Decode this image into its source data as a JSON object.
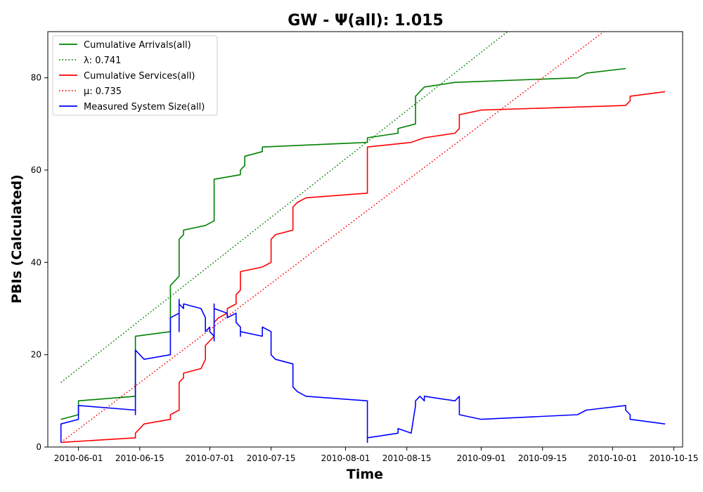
{
  "chart_data": {
    "type": "line",
    "title": "GW -  Ψ(all): 1.015",
    "xlabel": "Time",
    "ylabel": "PBIs (Calculated)",
    "xlim": [
      "2010-05-25",
      "2010-10-17"
    ],
    "ylim": [
      0,
      90
    ],
    "yticks": [
      0,
      20,
      40,
      60,
      80
    ],
    "xticks": [
      "2010-06-01",
      "2010-06-15",
      "2010-07-01",
      "2010-07-15",
      "2010-08-01",
      "2010-08-15",
      "2010-09-01",
      "2010-09-15",
      "2010-10-01",
      "2010-10-15"
    ],
    "grid": false,
    "legend_position": "top-left",
    "series": [
      {
        "name": "Cumulative Arrivals(all)",
        "style": "solid",
        "color": "#008000",
        "points": [
          [
            "2010-05-28",
            6
          ],
          [
            "2010-06-01",
            7
          ],
          [
            "2010-06-01",
            8
          ],
          [
            "2010-06-01",
            10
          ],
          [
            "2010-06-14",
            11
          ],
          [
            "2010-06-14",
            24
          ],
          [
            "2010-06-22",
            25
          ],
          [
            "2010-06-22",
            35
          ],
          [
            "2010-06-24",
            37
          ],
          [
            "2010-06-24",
            40
          ],
          [
            "2010-06-24",
            45
          ],
          [
            "2010-06-25",
            46
          ],
          [
            "2010-06-25",
            47
          ],
          [
            "2010-06-30",
            48
          ],
          [
            "2010-07-02",
            49
          ],
          [
            "2010-07-02",
            57
          ],
          [
            "2010-07-02",
            58
          ],
          [
            "2010-07-08",
            59
          ],
          [
            "2010-07-08",
            60
          ],
          [
            "2010-07-09",
            61
          ],
          [
            "2010-07-09",
            63
          ],
          [
            "2010-07-13",
            64
          ],
          [
            "2010-07-13",
            65
          ],
          [
            "2010-08-06",
            66
          ],
          [
            "2010-08-06",
            67
          ],
          [
            "2010-08-13",
            68
          ],
          [
            "2010-08-13",
            69
          ],
          [
            "2010-08-17",
            70
          ],
          [
            "2010-08-17",
            76
          ],
          [
            "2010-08-18",
            77
          ],
          [
            "2010-08-19",
            78
          ],
          [
            "2010-08-26",
            79
          ],
          [
            "2010-09-23",
            80
          ],
          [
            "2010-09-25",
            81
          ],
          [
            "2010-10-04",
            82
          ]
        ]
      },
      {
        "name": "λ: 0.741",
        "style": "dotted",
        "color": "#008000",
        "points": [
          [
            "2010-05-28",
            14
          ],
          [
            "2010-09-07",
            90
          ]
        ]
      },
      {
        "name": "Cumulative Services(all)",
        "style": "solid",
        "color": "#ff0000",
        "points": [
          [
            "2010-05-28",
            1
          ],
          [
            "2010-06-14",
            2
          ],
          [
            "2010-06-14",
            3
          ],
          [
            "2010-06-16",
            5
          ],
          [
            "2010-06-22",
            6
          ],
          [
            "2010-06-22",
            7
          ],
          [
            "2010-06-24",
            8
          ],
          [
            "2010-06-24",
            14
          ],
          [
            "2010-06-25",
            15
          ],
          [
            "2010-06-25",
            16
          ],
          [
            "2010-06-29",
            17
          ],
          [
            "2010-06-30",
            19
          ],
          [
            "2010-06-30",
            22
          ],
          [
            "2010-07-01",
            23
          ],
          [
            "2010-07-02",
            24
          ],
          [
            "2010-07-02",
            27
          ],
          [
            "2010-07-03",
            28
          ],
          [
            "2010-07-05",
            29
          ],
          [
            "2010-07-05",
            30
          ],
          [
            "2010-07-07",
            31
          ],
          [
            "2010-07-07",
            33
          ],
          [
            "2010-07-08",
            34
          ],
          [
            "2010-07-08",
            38
          ],
          [
            "2010-07-13",
            39
          ],
          [
            "2010-07-15",
            40
          ],
          [
            "2010-07-15",
            45
          ],
          [
            "2010-07-16",
            46
          ],
          [
            "2010-07-20",
            47
          ],
          [
            "2010-07-20",
            50
          ],
          [
            "2010-07-20",
            52
          ],
          [
            "2010-07-21",
            53
          ],
          [
            "2010-07-23",
            54
          ],
          [
            "2010-08-06",
            55
          ],
          [
            "2010-08-06",
            65
          ],
          [
            "2010-08-16",
            66
          ],
          [
            "2010-08-19",
            67
          ],
          [
            "2010-08-26",
            68
          ],
          [
            "2010-08-27",
            69
          ],
          [
            "2010-08-27",
            72
          ],
          [
            "2010-09-01",
            73
          ],
          [
            "2010-10-04",
            74
          ],
          [
            "2010-10-05",
            75
          ],
          [
            "2010-10-05",
            76
          ],
          [
            "2010-10-13",
            77
          ]
        ]
      },
      {
        "name": "μ: 0.735",
        "style": "dotted",
        "color": "#ff0000",
        "points": [
          [
            "2010-05-28",
            1
          ],
          [
            "2010-09-29",
            90
          ]
        ]
      },
      {
        "name": "Measured System Size(all)",
        "style": "solid",
        "color": "#0000ff",
        "points": [
          [
            "2010-05-28",
            1
          ],
          [
            "2010-05-28",
            5
          ],
          [
            "2010-06-01",
            6
          ],
          [
            "2010-06-01",
            7
          ],
          [
            "2010-06-01",
            9
          ],
          [
            "2010-06-14",
            8
          ],
          [
            "2010-06-14",
            7
          ],
          [
            "2010-06-14",
            21
          ],
          [
            "2010-06-16",
            19
          ],
          [
            "2010-06-22",
            20
          ],
          [
            "2010-06-22",
            28
          ],
          [
            "2010-06-24",
            29
          ],
          [
            "2010-06-24",
            32
          ],
          [
            "2010-06-24",
            25
          ],
          [
            "2010-06-24",
            31
          ],
          [
            "2010-06-25",
            30
          ],
          [
            "2010-06-25",
            31
          ],
          [
            "2010-06-29",
            30
          ],
          [
            "2010-06-30",
            28
          ],
          [
            "2010-06-30",
            25
          ],
          [
            "2010-07-01",
            26
          ],
          [
            "2010-07-01",
            25
          ],
          [
            "2010-07-02",
            24
          ],
          [
            "2010-07-02",
            23
          ],
          [
            "2010-07-02",
            31
          ],
          [
            "2010-07-02",
            30
          ],
          [
            "2010-07-05",
            29
          ],
          [
            "2010-07-05",
            28
          ],
          [
            "2010-07-07",
            29
          ],
          [
            "2010-07-07",
            27
          ],
          [
            "2010-07-08",
            26
          ],
          [
            "2010-07-08",
            24
          ],
          [
            "2010-07-08",
            25
          ],
          [
            "2010-07-13",
            24
          ],
          [
            "2010-07-13",
            26
          ],
          [
            "2010-07-15",
            25
          ],
          [
            "2010-07-15",
            20
          ],
          [
            "2010-07-16",
            19
          ],
          [
            "2010-07-20",
            18
          ],
          [
            "2010-07-20",
            15
          ],
          [
            "2010-07-20",
            13
          ],
          [
            "2010-07-21",
            12
          ],
          [
            "2010-07-23",
            11
          ],
          [
            "2010-08-06",
            10
          ],
          [
            "2010-08-06",
            1
          ],
          [
            "2010-08-06",
            2
          ],
          [
            "2010-08-13",
            3
          ],
          [
            "2010-08-13",
            4
          ],
          [
            "2010-08-16",
            3
          ],
          [
            "2010-08-17",
            9
          ],
          [
            "2010-08-17",
            10
          ],
          [
            "2010-08-18",
            11
          ],
          [
            "2010-08-19",
            10
          ],
          [
            "2010-08-19",
            11
          ],
          [
            "2010-08-26",
            10
          ],
          [
            "2010-08-27",
            11
          ],
          [
            "2010-08-27",
            7
          ],
          [
            "2010-09-01",
            6
          ],
          [
            "2010-09-23",
            7
          ],
          [
            "2010-09-25",
            8
          ],
          [
            "2010-10-04",
            9
          ],
          [
            "2010-10-04",
            8
          ],
          [
            "2010-10-05",
            7
          ],
          [
            "2010-10-05",
            6
          ],
          [
            "2010-10-13",
            5
          ]
        ]
      }
    ]
  }
}
